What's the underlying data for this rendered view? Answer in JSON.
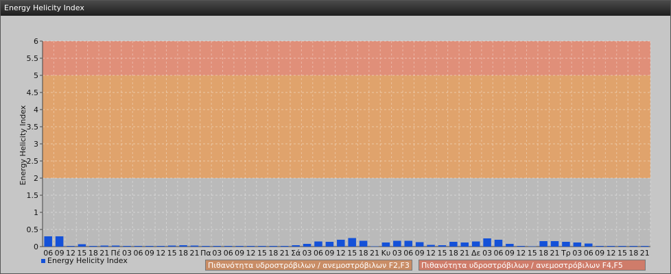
{
  "window": {
    "title": "Energy Helicity Index"
  },
  "colors": {
    "bar": "#1451d8",
    "band_low": "#b9b9b9",
    "band_mid": "#e2a064",
    "band_high": "#e28a72",
    "legend_mid": "#c98d66",
    "legend_high": "#cf7c6a"
  },
  "legend": {
    "series_label": "Energy Helicity Index",
    "band_mid_label": "Πιθανότητα υδροστρόβιλων / ανεμοστρόβιλων F2,F3",
    "band_high_label": "Πιθανότητα υδροστρόβιλων / ανεμοστρόβιλων F4,F5"
  },
  "chart_data": {
    "type": "bar",
    "title": "",
    "xlabel": "",
    "ylabel": "Energy Helicity Index",
    "ylim": [
      0,
      6
    ],
    "yticks": [
      "0",
      "0.5",
      "1",
      "1.5",
      "2",
      "2.5",
      "3",
      "3.5",
      "4",
      "4.5",
      "5",
      "5.5",
      "6"
    ],
    "grid": true,
    "bands": [
      {
        "from": 0,
        "to": 2,
        "color": "#b9b9b9"
      },
      {
        "from": 2,
        "to": 5,
        "color": "#e2a064",
        "label": "Πιθανότητα υδροστρόβιλων / ανεμοστρόβιλων F2,F3"
      },
      {
        "from": 5,
        "to": 6,
        "color": "#e28a72",
        "label": "Πιθανότητα υδροστρόβιλων / ανεμοστρόβιλων F4,F5"
      }
    ],
    "categories": [
      "06",
      "09",
      "12",
      "15",
      "18",
      "21",
      "Πέ",
      "03",
      "06",
      "09",
      "12",
      "15",
      "18",
      "21",
      "Πα",
      "03",
      "06",
      "09",
      "12",
      "15",
      "18",
      "21",
      "Σά",
      "03",
      "06",
      "09",
      "12",
      "15",
      "18",
      "21",
      "Κυ",
      "03",
      "06",
      "09",
      "12",
      "15",
      "18",
      "21",
      "Δε",
      "03",
      "06",
      "09",
      "12",
      "15",
      "18",
      "21",
      "Τρ",
      "03",
      "06",
      "09",
      "12",
      "15",
      "18",
      "21"
    ],
    "series": [
      {
        "name": "Energy Helicity Index",
        "values": [
          0.3,
          0.3,
          0.02,
          0.07,
          0.02,
          0.03,
          0.03,
          0.02,
          0.02,
          0.02,
          0.02,
          0.03,
          0.04,
          0.03,
          0.02,
          0.02,
          0.02,
          0.02,
          0.02,
          0.02,
          0.02,
          0.02,
          0.04,
          0.08,
          0.15,
          0.14,
          0.2,
          0.25,
          0.17,
          0.01,
          0.12,
          0.17,
          0.17,
          0.13,
          0.05,
          0.04,
          0.14,
          0.12,
          0.15,
          0.24,
          0.2,
          0.08,
          0.02,
          0.01,
          0.16,
          0.16,
          0.14,
          0.12,
          0.09,
          0.02,
          0.02,
          0.02,
          0.02,
          0.02
        ]
      }
    ]
  }
}
